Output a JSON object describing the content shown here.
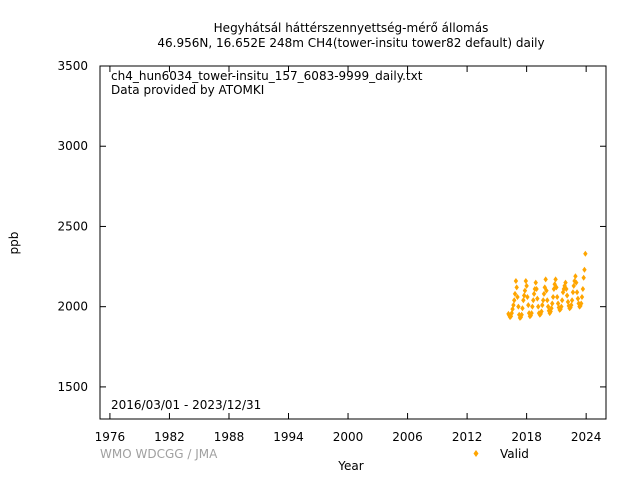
{
  "chart_data": {
    "type": "scatter",
    "title_line1": "Hegyhátsál háttérszennyettség-mérő állomás",
    "title_line2": "46.956N, 16.652E 248m     CH4(tower-insitu tower82 default) daily",
    "file_label": "ch4_hun6034_tower-insitu_157_6083-9999_daily.txt",
    "provider_label": "Data provided by ATOMKI",
    "date_range_label": "2016/03/01 - 2023/12/31",
    "xlabel": "Year",
    "ylabel": "ppb",
    "credit": "WMO WDCGG / JMA",
    "xlim": [
      1975,
      2026
    ],
    "ylim": [
      1300,
      3500
    ],
    "x_ticks": [
      "1976",
      "1982",
      "1988",
      "1994",
      "2000",
      "2006",
      "2012",
      "2018",
      "2024"
    ],
    "y_ticks": [
      "1500",
      "2000",
      "2500",
      "3000",
      "3500"
    ],
    "series": [
      {
        "name": "Valid",
        "color": "#ffa500",
        "marker": "diamond",
        "x": [
          2016.17,
          2016.25,
          2016.33,
          2016.42,
          2016.5,
          2016.58,
          2016.67,
          2016.75,
          2016.83,
          2016.92,
          2017.0,
          2017.08,
          2017.17,
          2017.25,
          2017.33,
          2017.42,
          2017.5,
          2017.58,
          2017.67,
          2017.75,
          2017.83,
          2017.92,
          2018.0,
          2018.08,
          2018.17,
          2018.25,
          2018.33,
          2018.42,
          2018.5,
          2018.58,
          2018.67,
          2018.75,
          2018.83,
          2018.92,
          2019.0,
          2019.08,
          2019.17,
          2019.25,
          2019.33,
          2019.42,
          2019.5,
          2019.58,
          2019.67,
          2019.75,
          2019.83,
          2019.92,
          2020.0,
          2020.08,
          2020.17,
          2020.25,
          2020.33,
          2020.42,
          2020.5,
          2020.58,
          2020.67,
          2020.75,
          2020.83,
          2020.92,
          2021.0,
          2021.08,
          2021.17,
          2021.25,
          2021.33,
          2021.42,
          2021.5,
          2021.58,
          2021.67,
          2021.75,
          2021.83,
          2021.92,
          2022.0,
          2022.08,
          2022.17,
          2022.25,
          2022.33,
          2022.42,
          2022.5,
          2022.58,
          2022.67,
          2022.75,
          2022.83,
          2022.92,
          2023.0,
          2023.08,
          2023.17,
          2023.25,
          2023.33,
          2023.42,
          2023.5,
          2023.58,
          2023.67,
          2023.75,
          2023.83,
          2023.92
        ],
        "y": [
          1955,
          1945,
          1935,
          1940,
          1960,
          1985,
          2010,
          2040,
          2080,
          2160,
          2120,
          2060,
          2000,
          1950,
          1930,
          1935,
          1950,
          1990,
          2040,
          2070,
          2100,
          2160,
          2130,
          2060,
          2010,
          1960,
          1940,
          1945,
          1960,
          2000,
          2040,
          2080,
          2110,
          2150,
          2110,
          2050,
          2000,
          1960,
          1950,
          1955,
          1970,
          2010,
          2040,
          2080,
          2120,
          2170,
          2100,
          2040,
          2000,
          1975,
          1960,
          1970,
          1990,
          2020,
          2060,
          2110,
          2140,
          2170,
          2120,
          2060,
          2020,
          1995,
          1980,
          1985,
          2000,
          2040,
          2090,
          2110,
          2130,
          2150,
          2110,
          2070,
          2030,
          2005,
          1990,
          1995,
          2010,
          2040,
          2090,
          2130,
          2160,
          2190,
          2150,
          2090,
          2050,
          2020,
          2000,
          2005,
          2020,
          2060,
          2110,
          2180,
          2230,
          2330
        ]
      }
    ]
  }
}
